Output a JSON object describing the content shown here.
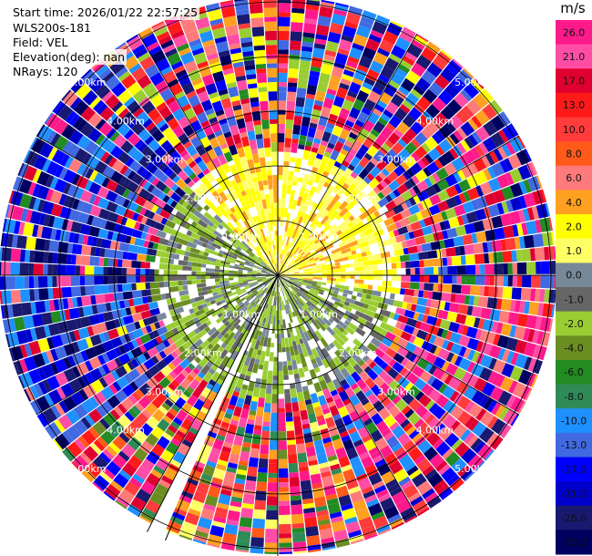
{
  "header": {
    "start_time": "Start time: 2026/01/22 22:57:25",
    "instrument": "WLS200s-181",
    "field": "Field: VEL",
    "elevation": "Elevation(deg): nan",
    "nrays": "NRays: 120"
  },
  "chart_data": {
    "type": "ppi",
    "field": "VEL",
    "units": "m/s",
    "n_rays": 120,
    "range_rings_km": [
      1,
      2,
      3,
      4,
      5
    ],
    "ring_labels": [
      "1.00km",
      "2.00km",
      "3.00km",
      "4.00km",
      "5.00km"
    ],
    "max_range_km": 5.1,
    "empty_sector_deg": [
      203,
      207
    ],
    "colorbar": {
      "ticks": [
        "26.0",
        "21.0",
        "17.0",
        "13.0",
        "10.0",
        "8.0",
        "6.0",
        "4.0",
        "2.0",
        "1.0",
        "0.0",
        "-1.0",
        "-2.0",
        "-4.0",
        "-6.0",
        "-8.0",
        "-10.0",
        "-13.0",
        "-17.0",
        "-21.0",
        "-26.0",
        "-30.0"
      ],
      "colors": [
        "#ff1a8c",
        "#ff4da6",
        "#e00030",
        "#ff1a1a",
        "#ff3b3b",
        "#ff5a1a",
        "#ff7a7a",
        "#ffa020",
        "#ffff00",
        "#ffff66",
        "#778899",
        "#666666",
        "#9acd32",
        "#6b8e23",
        "#228b22",
        "#2e8b57",
        "#1e90ff",
        "#4169e1",
        "#0000ff",
        "#0000cd",
        "#191970",
        "#000060"
      ]
    }
  }
}
